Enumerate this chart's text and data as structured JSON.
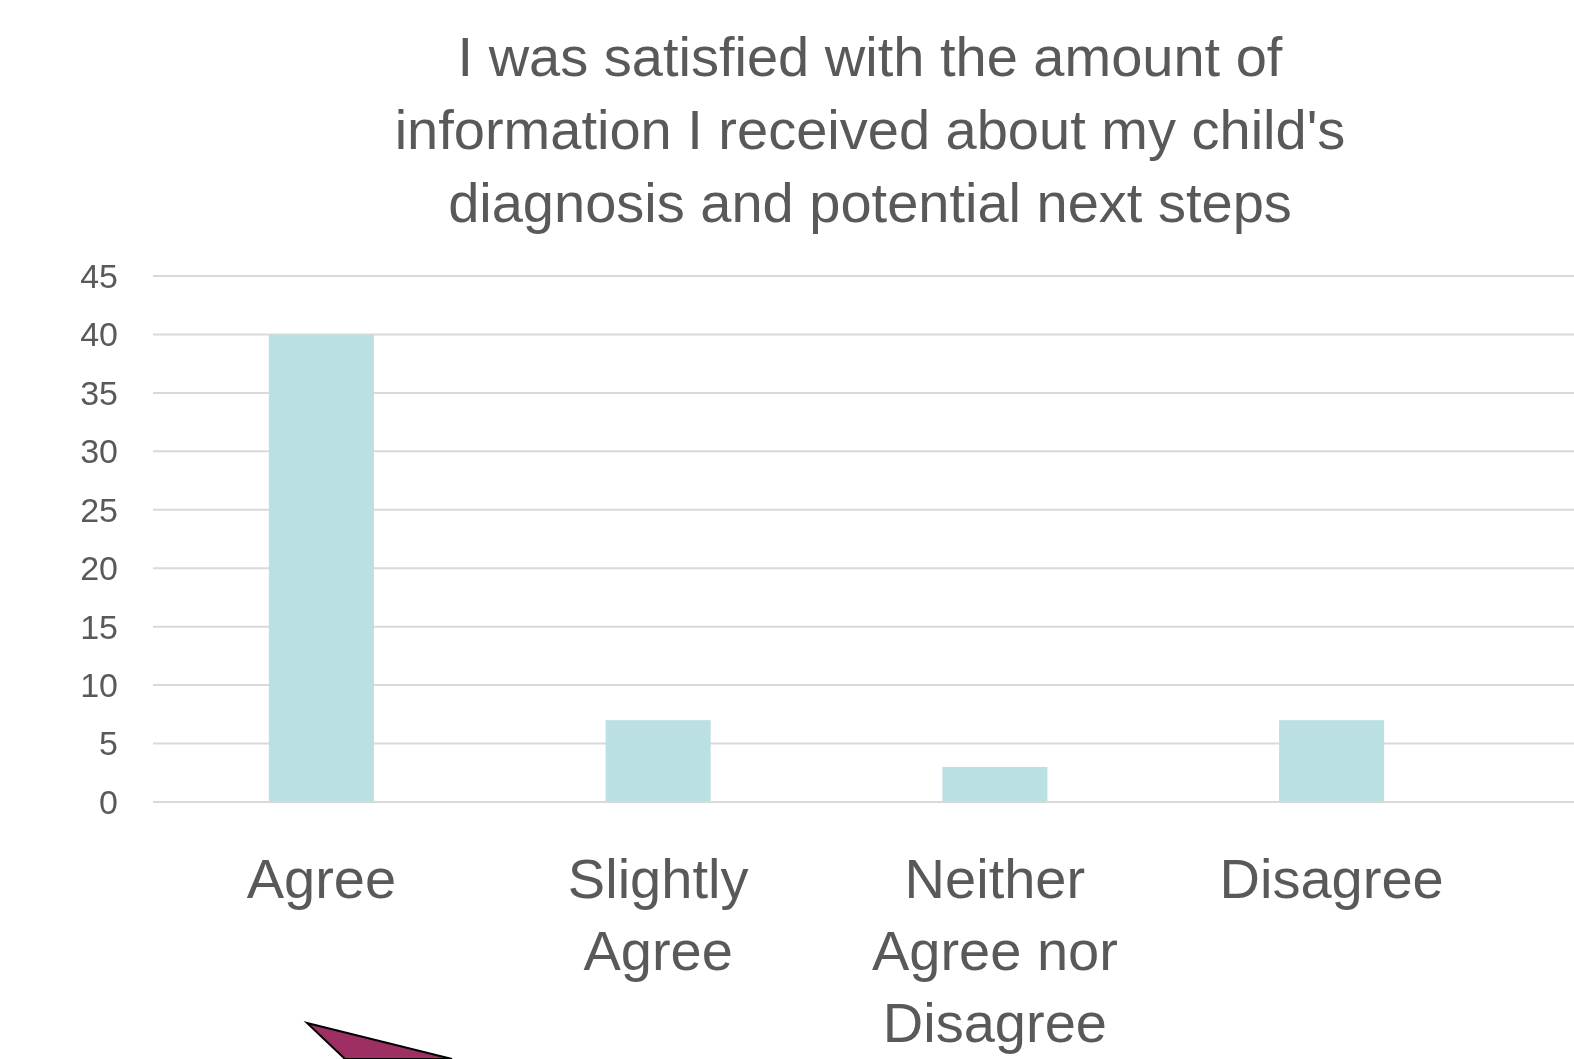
{
  "chart_data": {
    "type": "bar",
    "title": "I was satisfied with the amount of information I received about my child's diagnosis and potential next steps",
    "categories": [
      "Agree",
      "Slightly Agree",
      "Neither Agree nor Disagree",
      "Disagree"
    ],
    "values": [
      40,
      7,
      3,
      7
    ],
    "color": "#bbe0e3",
    "ylim": [
      0,
      45
    ],
    "yticks": [
      0,
      5,
      10,
      15,
      20,
      25,
      30,
      35,
      40,
      45
    ],
    "grid": "y"
  }
}
